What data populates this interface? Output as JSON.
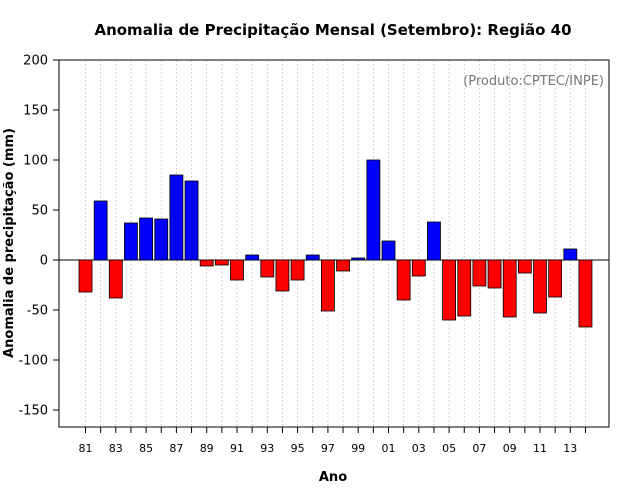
{
  "chart_data": {
    "type": "bar",
    "title": "Anomalia de Precipitação Mensal (Setembro): Região 40",
    "xlabel": "Ano",
    "ylabel": "Anomalia de precipitação (mm)",
    "credit": "(Produto:CPTEC/INPE)",
    "ylim": [
      -167,
      200
    ],
    "yticks": [
      -150,
      -100,
      -50,
      0,
      50,
      100,
      150,
      200
    ],
    "positive_color": "#0000ff",
    "negative_color": "#ff0000",
    "categories": [
      "81",
      "82",
      "83",
      "84",
      "85",
      "86",
      "87",
      "88",
      "89",
      "90",
      "91",
      "92",
      "93",
      "94",
      "95",
      "96",
      "97",
      "98",
      "99",
      "00",
      "01",
      "02",
      "03",
      "04",
      "05",
      "06",
      "07",
      "08",
      "09",
      "10",
      "11",
      "12",
      "13",
      "14"
    ],
    "xtick_labels": [
      "81",
      "83",
      "85",
      "87",
      "89",
      "91",
      "93",
      "95",
      "97",
      "99",
      "01",
      "03",
      "05",
      "07",
      "09",
      "11",
      "13"
    ],
    "values": [
      -32,
      59,
      -38,
      37,
      42,
      41,
      85,
      79,
      -6,
      -5,
      -20,
      5,
      -17,
      -31,
      -20,
      5,
      -51,
      -11,
      2,
      100,
      19,
      -40,
      -16,
      38,
      -60,
      -56,
      -26,
      -28,
      -57,
      -13,
      -53,
      -37,
      11,
      -67
    ]
  }
}
